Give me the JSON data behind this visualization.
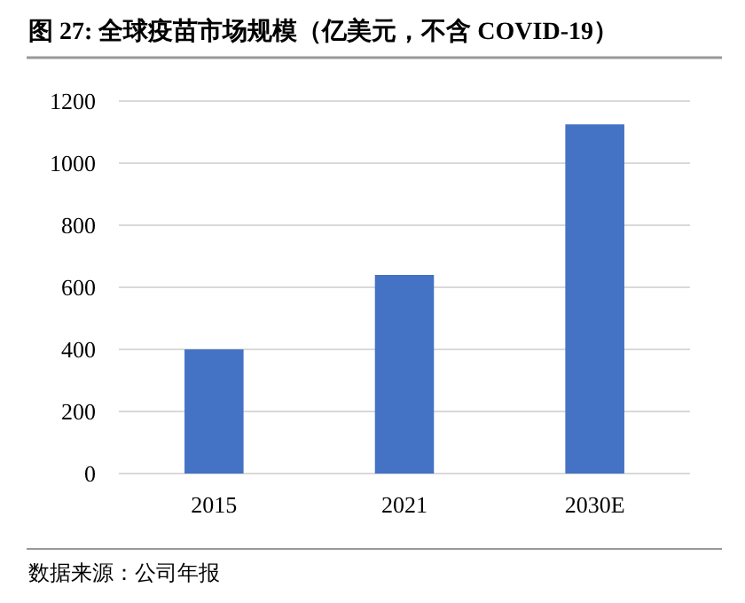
{
  "chart_data": {
    "type": "bar",
    "title": "图 27: 全球疫苗市场规模（亿美元，不含 COVID-19）",
    "categories": [
      "2015",
      "2021",
      "2030E"
    ],
    "values": [
      400,
      640,
      1125
    ],
    "color": "#4472c4",
    "ylim": [
      0,
      1200
    ],
    "yticks": [
      0,
      200,
      400,
      600,
      800,
      1000,
      1200
    ],
    "grid": "y",
    "annotations": [
      "数据来源：公司年报"
    ]
  }
}
